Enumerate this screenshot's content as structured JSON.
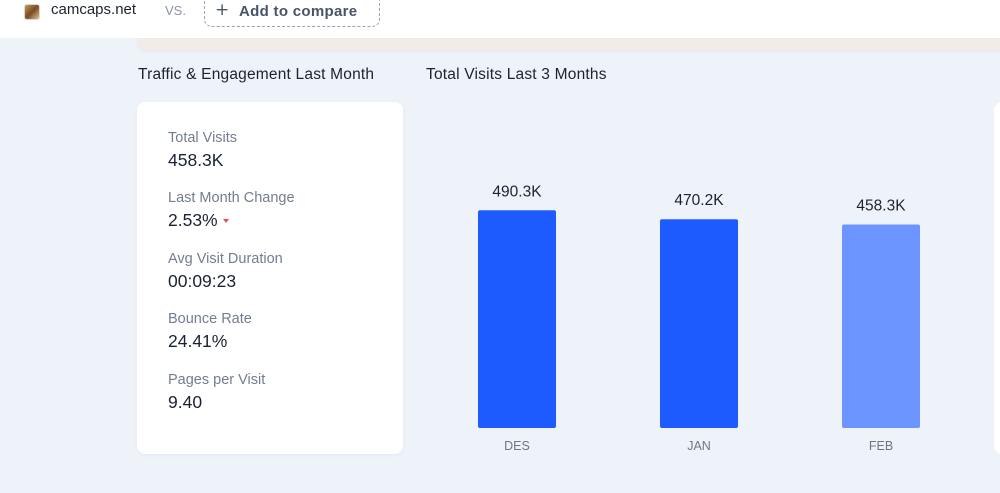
{
  "compare_bar": {
    "site_name": "camcaps.net",
    "vs_label": "VS.",
    "add_label": "Add to compare",
    "add_icon": "plus-icon",
    "favicon_icon": "site-favicon-icon"
  },
  "sections": {
    "left_title": "Traffic & Engagement Last Month",
    "right_title": "Total Visits Last 3 Months"
  },
  "stats": [
    {
      "label": "Total Visits",
      "value": "458.3K"
    },
    {
      "label": "Last Month Change",
      "value": "2.53%",
      "trend": "down"
    },
    {
      "label": "Avg Visit Duration",
      "value": "00:09:23"
    },
    {
      "label": "Bounce Rate",
      "value": "24.41%"
    },
    {
      "label": "Pages per Visit",
      "value": "9.40"
    }
  ],
  "colors": {
    "bar_primary": "#1e5bff",
    "bar_current": "#6d95ff",
    "trend_down": "#e5534b",
    "background": "#eef2f9"
  },
  "chart_data": {
    "type": "bar",
    "title": "Total Visits Last 3 Months",
    "categories": [
      "DES",
      "JAN",
      "FEB"
    ],
    "values": [
      490300,
      470200,
      458300
    ],
    "value_labels": [
      "490.3K",
      "470.2K",
      "458.3K"
    ],
    "xlabel": "",
    "ylabel": "",
    "grid": false,
    "legend": "none"
  }
}
